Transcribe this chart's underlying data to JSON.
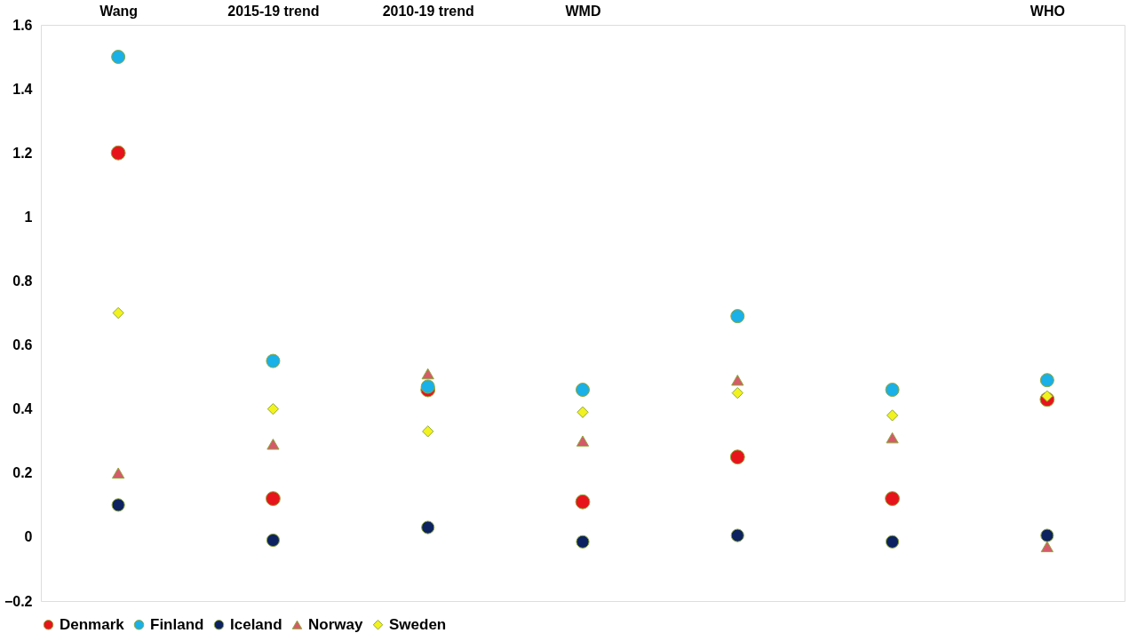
{
  "chart_data": {
    "type": "scatter",
    "categories": [
      "Wang",
      "2015-19 trend",
      "2010-19 trend",
      "WMD",
      null,
      null,
      "WHO"
    ],
    "series": [
      {
        "name": "Denmark",
        "color": "#e8141b",
        "marker": "circle",
        "values": [
          1.2,
          0.12,
          0.46,
          0.11,
          0.25,
          0.12,
          0.43
        ]
      },
      {
        "name": "Finland",
        "color": "#1ab0e8",
        "marker": "circle",
        "values": [
          1.5,
          0.55,
          0.47,
          0.46,
          0.69,
          0.46,
          0.49
        ]
      },
      {
        "name": "Iceland",
        "color": "#0d2260",
        "marker": "circle",
        "values": [
          0.1,
          -0.01,
          0.03,
          -0.015,
          0.005,
          -0.015,
          0.005
        ]
      },
      {
        "name": "Norway",
        "color": "#d65a6a",
        "marker": "triangle",
        "values": [
          0.2,
          0.29,
          0.51,
          0.3,
          0.49,
          0.31,
          -0.03
        ]
      },
      {
        "name": "Sweden",
        "color": "#f2f21e",
        "marker": "diamond",
        "values": [
          0.7,
          0.4,
          0.33,
          0.39,
          0.45,
          0.38,
          0.44
        ]
      }
    ],
    "ylim": [
      -0.2,
      1.6
    ],
    "yticks": [
      -0.2,
      0,
      0.2,
      0.4,
      0.6,
      0.8,
      1,
      1.2,
      1.4,
      1.6
    ],
    "grid": false,
    "legend": "bottom"
  }
}
